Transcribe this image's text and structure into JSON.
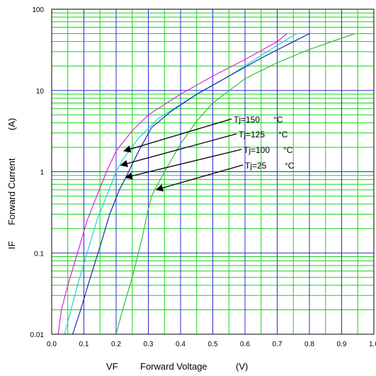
{
  "chart_data": {
    "type": "line",
    "x_axis": {
      "label_symbol": "VF",
      "label": "Forward Voltage",
      "unit": "(V)",
      "range": [
        0.0,
        1.0
      ],
      "ticks": [
        "0.0",
        "0.1",
        "0.2",
        "0.3",
        "0.4",
        "0.5",
        "0.6",
        "0.7",
        "0.8",
        "0.9",
        "1.0"
      ],
      "scale": "linear"
    },
    "y_axis": {
      "label_symbol": "IF",
      "label": "Forward Current",
      "unit": "(A)",
      "range": [
        0.01,
        100
      ],
      "ticks": [
        "0.01",
        "0.1",
        "1",
        "10",
        "100"
      ],
      "scale": "log"
    },
    "grid": true,
    "colors": {
      "minor_grid": "#19d119",
      "major_grid": "#2b2bd6",
      "frame": "#000000"
    },
    "series": [
      {
        "name": "Tj=150",
        "color": "#e020e0",
        "points": [
          [
            0.02,
            0.01
          ],
          [
            0.03,
            0.02
          ],
          [
            0.05,
            0.04
          ],
          [
            0.08,
            0.1
          ],
          [
            0.11,
            0.25
          ],
          [
            0.14,
            0.5
          ],
          [
            0.17,
            1.0
          ],
          [
            0.2,
            1.8
          ],
          [
            0.25,
            3.2
          ],
          [
            0.3,
            5.0
          ],
          [
            0.4,
            9.0
          ],
          [
            0.5,
            15.0
          ],
          [
            0.6,
            24.0
          ],
          [
            0.7,
            40.0
          ],
          [
            0.73,
            50.0
          ]
        ]
      },
      {
        "name": "Tj=125",
        "color": "#20d0e0",
        "points": [
          [
            0.04,
            0.01
          ],
          [
            0.06,
            0.02
          ],
          [
            0.08,
            0.04
          ],
          [
            0.11,
            0.1
          ],
          [
            0.14,
            0.25
          ],
          [
            0.17,
            0.5
          ],
          [
            0.2,
            1.0
          ],
          [
            0.22,
            1.4
          ],
          [
            0.27,
            2.6
          ],
          [
            0.33,
            4.5
          ],
          [
            0.43,
            8.0
          ],
          [
            0.55,
            15.0
          ],
          [
            0.65,
            27.0
          ],
          [
            0.74,
            45.0
          ],
          [
            0.76,
            50.0
          ]
        ]
      },
      {
        "name": "Tj=100",
        "color": "#2020b0",
        "points": [
          [
            0.065,
            0.01
          ],
          [
            0.09,
            0.02
          ],
          [
            0.12,
            0.05
          ],
          [
            0.15,
            0.12
          ],
          [
            0.18,
            0.3
          ],
          [
            0.21,
            0.6
          ],
          [
            0.23,
            0.85
          ],
          [
            0.27,
            1.8
          ],
          [
            0.31,
            3.5
          ],
          [
            0.37,
            5.5
          ],
          [
            0.45,
            9.0
          ],
          [
            0.55,
            15.0
          ],
          [
            0.65,
            25.0
          ],
          [
            0.74,
            38.0
          ],
          [
            0.8,
            50.0
          ]
        ]
      },
      {
        "name": "Tj=25",
        "color": "#30c030",
        "points": [
          [
            0.2,
            0.01
          ],
          [
            0.22,
            0.02
          ],
          [
            0.25,
            0.05
          ],
          [
            0.28,
            0.15
          ],
          [
            0.3,
            0.35
          ],
          [
            0.31,
            0.5
          ],
          [
            0.32,
            0.6
          ],
          [
            0.35,
            1.0
          ],
          [
            0.4,
            2.2
          ],
          [
            0.45,
            4.2
          ],
          [
            0.5,
            7.0
          ],
          [
            0.6,
            14.0
          ],
          [
            0.7,
            22.0
          ],
          [
            0.8,
            32.0
          ],
          [
            0.94,
            50.0
          ]
        ]
      }
    ],
    "annotations": [
      {
        "text": "Tj=150",
        "unit": "°C",
        "series": "Tj=150",
        "arrow_to": [
          0.22,
          1.8
        ]
      },
      {
        "text": "Tj=125",
        "unit": "°C",
        "series": "Tj=125",
        "arrow_to": [
          0.21,
          1.2
        ]
      },
      {
        "text": "Tj=100",
        "unit": "°C",
        "series": "Tj=100",
        "arrow_to": [
          0.225,
          0.85
        ]
      },
      {
        "text": "Tj=25",
        "unit": "°C",
        "series": "Tj=25",
        "arrow_to": [
          0.32,
          0.6
        ]
      }
    ]
  }
}
